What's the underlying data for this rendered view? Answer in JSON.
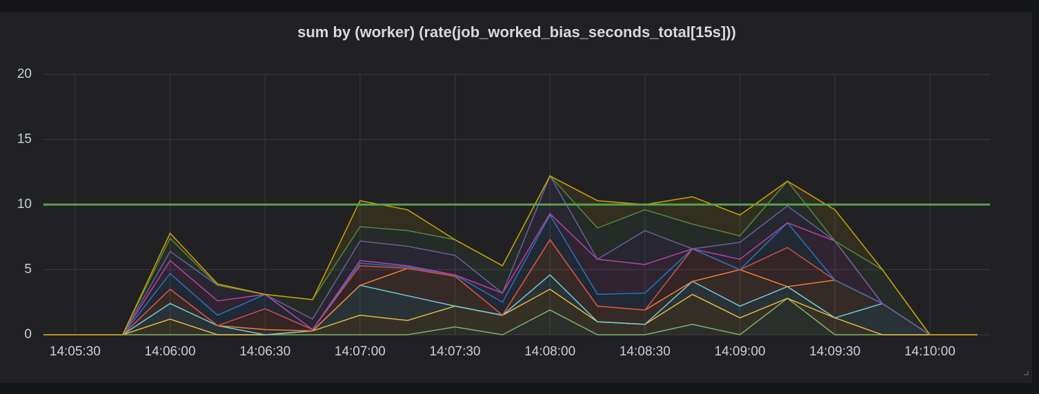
{
  "chart_data": {
    "type": "stacked-area",
    "title": "sum by (worker) (rate(job_worked_bias_seconds_total[15s]))",
    "x": [
      "14:05:20",
      "14:05:30",
      "14:05:45",
      "14:06:00",
      "14:06:15",
      "14:06:30",
      "14:06:45",
      "14:07:00",
      "14:07:15",
      "14:07:30",
      "14:07:45",
      "14:08:00",
      "14:08:15",
      "14:08:30",
      "14:08:45",
      "14:09:00",
      "14:09:15",
      "14:09:30",
      "14:09:45",
      "14:10:00",
      "14:10:15"
    ],
    "xlim": [
      "14:05:20",
      "14:10:19"
    ],
    "xticks": [
      "14:05:30",
      "14:06:00",
      "14:06:30",
      "14:07:00",
      "14:07:30",
      "14:08:00",
      "14:08:30",
      "14:09:00",
      "14:09:30",
      "14:10:00"
    ],
    "ylim": [
      0,
      20
    ],
    "yticks": [
      0,
      5,
      10,
      15,
      20
    ],
    "grid": true,
    "threshold": 10,
    "threshold_color": "#56a64b",
    "series": [
      {
        "color": "#7eb26d",
        "values": [
          0,
          0,
          0,
          0,
          0,
          0,
          0,
          0,
          0,
          0.6,
          0,
          1.9,
          0,
          0,
          0.8,
          0,
          2.8,
          0,
          0,
          0,
          0
        ]
      },
      {
        "color": "#eab839",
        "values": [
          0,
          0,
          0,
          1.2,
          0,
          0,
          0.3,
          1.5,
          1.1,
          1.6,
          1.5,
          1.6,
          1.0,
          0.8,
          2.3,
          1.3,
          0,
          1.3,
          0,
          0,
          0
        ]
      },
      {
        "color": "#6ed0e0",
        "values": [
          0,
          0,
          0,
          1.2,
          0.7,
          0,
          0,
          2.3,
          1.9,
          0,
          0,
          1.1,
          0,
          0,
          1.0,
          0.9,
          0.9,
          0,
          2.4,
          0,
          0
        ]
      },
      {
        "color": "#ef843c",
        "values": [
          0,
          0,
          0,
          1.1,
          0,
          0.4,
          0,
          0,
          2.1,
          2.3,
          0,
          2.7,
          1.2,
          1.1,
          0,
          2.8,
          0,
          2.9,
          0,
          0,
          0
        ]
      },
      {
        "color": "#e24d42",
        "values": [
          0,
          0,
          0,
          0,
          0,
          1.6,
          0.1,
          1.5,
          0,
          0,
          0,
          0,
          0,
          0,
          2.5,
          0,
          3.0,
          0,
          0,
          0,
          0
        ]
      },
      {
        "color": "#1f78c1",
        "values": [
          0,
          0,
          0,
          1.2,
          0.8,
          1.1,
          0,
          0.2,
          0.1,
          0.1,
          1.0,
          1.9,
          0.9,
          1.3,
          0,
          0,
          1.9,
          0,
          0,
          0,
          0
        ]
      },
      {
        "color": "#ba43a9",
        "values": [
          0,
          0,
          0,
          1.0,
          1.1,
          0,
          0,
          0.2,
          0.1,
          0,
          0.7,
          0.1,
          2.7,
          2.2,
          0,
          0.8,
          0,
          3.0,
          0,
          0,
          0
        ]
      },
      {
        "color": "#705da0",
        "values": [
          0,
          0,
          0,
          0.7,
          1.2,
          0,
          0.8,
          1.5,
          1.5,
          1.5,
          0,
          2.9,
          0,
          2.6,
          0,
          1.3,
          1.3,
          0,
          0,
          0,
          0
        ]
      },
      {
        "color": "#508642",
        "values": [
          0,
          0,
          0,
          1.0,
          0,
          0,
          1.5,
          1.1,
          1.2,
          1.2,
          2.1,
          0,
          2.4,
          1.6,
          1.9,
          0.5,
          1.9,
          0,
          2.6,
          0,
          0
        ]
      },
      {
        "color": "#cca300",
        "values": [
          0,
          0,
          0,
          0.4,
          0.1,
          0,
          0,
          2.0,
          1.6,
          0,
          0,
          0,
          2.1,
          0.4,
          2.1,
          1.6,
          0,
          2.4,
          0,
          0,
          0
        ]
      }
    ]
  }
}
